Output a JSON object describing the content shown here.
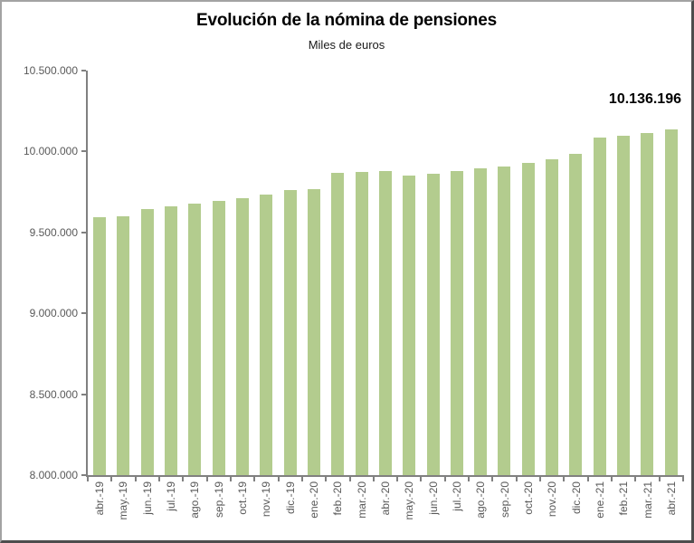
{
  "window": {
    "background": "#ffffff",
    "border_light": "#a3a3a3",
    "border_dark": "#4d4d4d"
  },
  "chart_data": {
    "type": "bar",
    "title": "Evolución de la nómina de pensiones",
    "subtitle": "Miles de euros",
    "categories": [
      "abr.-19",
      "may.-19",
      "jun.-19",
      "jul.-19",
      "ago.-19",
      "sep.-19",
      "oct.-19",
      "nov.-19",
      "dic.-19",
      "ene.-20",
      "feb.-20",
      "mar.-20",
      "abr.-20",
      "may.-20",
      "jun.-20",
      "jul.-20",
      "ago.-20",
      "sep.-20",
      "oct.-20",
      "nov.-20",
      "dic.-20",
      "ene.-21",
      "feb.-21",
      "mar.-21",
      "abr.-21"
    ],
    "values": [
      9595000,
      9600000,
      9645000,
      9663000,
      9680000,
      9695000,
      9712000,
      9735000,
      9760000,
      9768000,
      9870000,
      9875000,
      9878000,
      9852000,
      9862000,
      9880000,
      9898000,
      9908000,
      9928000,
      9952000,
      9983000,
      10085000,
      10097000,
      10116000,
      10136196
    ],
    "ylim": [
      8000000,
      10500000
    ],
    "ytick_step": 500000,
    "ytick_labels": [
      "10.500.000",
      "10.000.000",
      "9.500.000",
      "9.000.000",
      "8.500.000",
      "8.000.000"
    ],
    "grid": false,
    "legend": false,
    "bar_color": "#b3cc8e",
    "axis_color": "#808080",
    "tick_label_color": "#595959",
    "annotation": {
      "text": "10.136.196",
      "category": "abr.-21"
    }
  }
}
